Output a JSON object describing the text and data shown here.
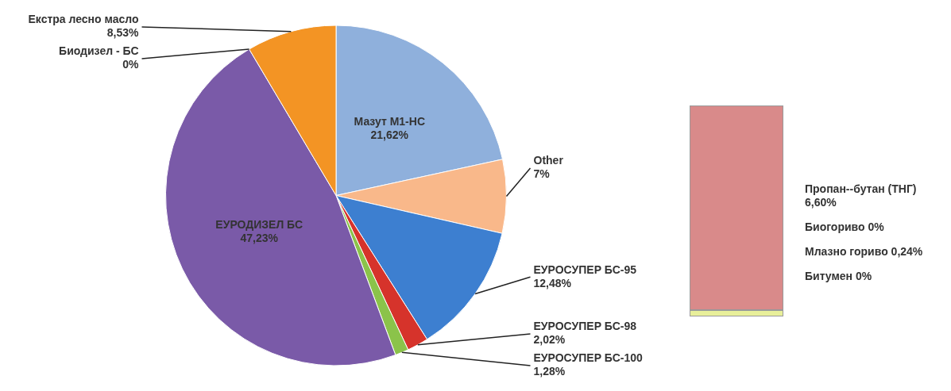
{
  "chart_data": [
    {
      "type": "pie",
      "categories": [
        "Мазут М1-НС",
        "Other",
        "ЕУРОСУПЕР БС-95",
        "ЕУРОСУПЕР БС-98",
        "ЕУРОСУПЕР БС-100",
        "ЕУРОДИЗЕЛ БС",
        "Биодизел - БС",
        "Екстра лесно масло"
      ],
      "values": [
        21.62,
        7,
        12.48,
        2.02,
        1.28,
        47.23,
        0,
        8.53
      ],
      "value_labels": [
        "21,62%",
        "7%",
        "12,48%",
        "2,02%",
        "1,28%",
        "47,23%",
        "0%",
        "8,53%"
      ],
      "colors": [
        "#8fb0dc",
        "#f9b88a",
        "#3d7fd0",
        "#d6332b",
        "#8bc34a",
        "#7a5aa8",
        "#3c8a9a",
        "#f39424"
      ],
      "legend": false
    },
    {
      "type": "other",
      "annotations": [
        "Пропан--бутан (ТНГ) 6,60%",
        "Биогориво 0%",
        "Млазно гориво 0,24%",
        "Битумен 0%"
      ]
    }
  ]
}
